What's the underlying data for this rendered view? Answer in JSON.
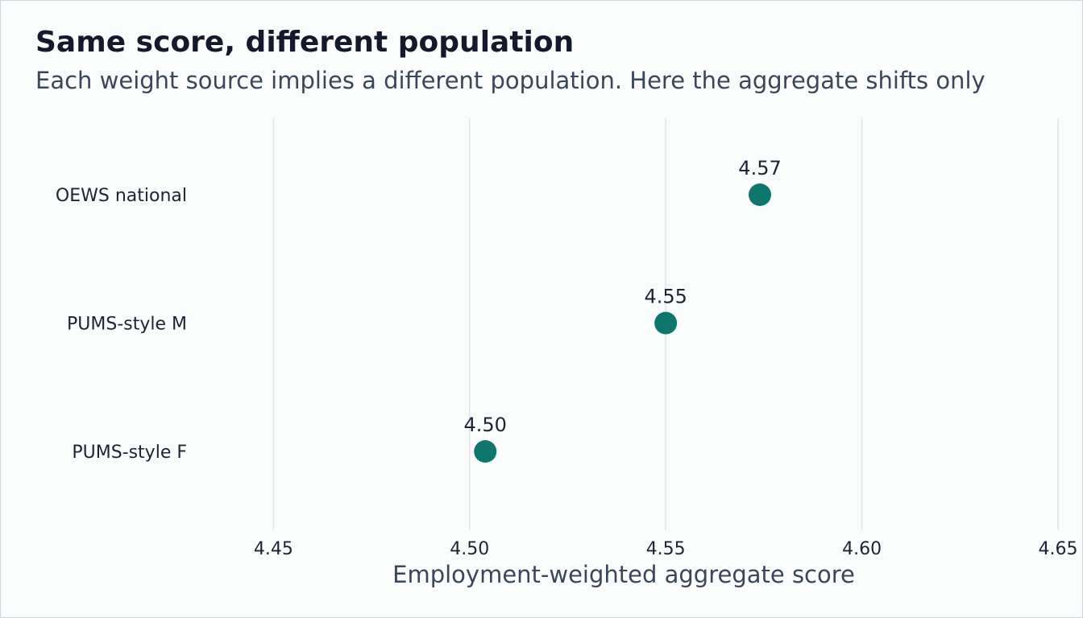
{
  "chart_data": {
    "type": "scatter",
    "title": "Same score, different population",
    "subtitle": "Each weight source implies a different population. Here the aggregate shifts only",
    "xlabel": "Employment-weighted aggregate score",
    "ylabel": "",
    "xlim": [
      4.43,
      4.65
    ],
    "x_ticks": [
      "4.45",
      "4.50",
      "4.55",
      "4.60",
      "4.65"
    ],
    "grid": true,
    "categories": [
      "OEWS national",
      "PUMS-style M",
      "PUMS-style F"
    ],
    "values": [
      4.574,
      4.55,
      4.504
    ],
    "value_labels": [
      "4.57",
      "4.55",
      "4.50"
    ],
    "colors": {
      "point": "#0f766e"
    }
  }
}
